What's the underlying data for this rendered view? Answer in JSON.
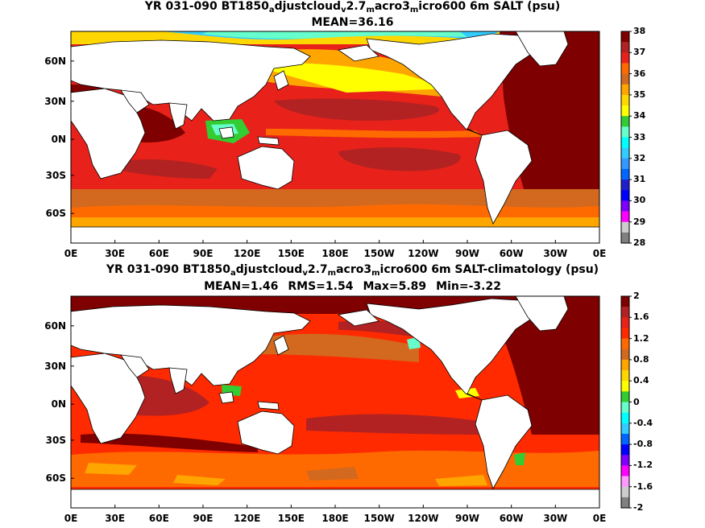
{
  "panels": [
    {
      "title_parts": [
        "YR 031-090 BT1850",
        "a",
        "djustcloud",
        "v",
        "2.7",
        "m",
        "acro3",
        "m",
        "icro600 6m SALT (psu)"
      ],
      "stats": [
        "MEAN=36.16"
      ],
      "colorbar_labels": [
        "38",
        "37",
        "36",
        "35",
        "34",
        "33",
        "32",
        "31",
        "30",
        "29",
        "28"
      ],
      "colorbar_colors": [
        "#7f0000",
        "#b22222",
        "#e8221a",
        "#ff6a00",
        "#d2691e",
        "#ffa500",
        "#ffd700",
        "#ffff00",
        "#33cc33",
        "#66ffcc",
        "#00ffff",
        "#33ccff",
        "#3399ff",
        "#0066ff",
        "#1f1fcc",
        "#0000ff",
        "#7f00ff",
        "#ff00ff",
        "#cccccc",
        "#808080"
      ]
    },
    {
      "title_parts": [
        "YR 031-090 BT1850",
        "a",
        "djustcloud",
        "v",
        "2.7",
        "m",
        "acro3",
        "m",
        "icro600 6m SALT-climatology (psu)"
      ],
      "stats": [
        "MEAN=1.46",
        "RMS=1.54",
        "Max=5.89",
        "Min=-3.22"
      ],
      "colorbar_labels": [
        "2",
        "1.6",
        "1.2",
        "0.8",
        "0.4",
        "0",
        "-0.4",
        "-0.8",
        "-1.2",
        "-1.6",
        "-2"
      ],
      "colorbar_colors": [
        "#7f0000",
        "#b22222",
        "#e8221a",
        "#ff2a00",
        "#ff6a00",
        "#d2691e",
        "#ffa500",
        "#ffd700",
        "#ffff00",
        "#33cc33",
        "#66ffcc",
        "#00ffff",
        "#33ccff",
        "#0066ff",
        "#0000ff",
        "#7f00ff",
        "#ff00ff",
        "#ff99ff",
        "#cccccc",
        "#808080"
      ]
    }
  ],
  "lat_labels": [
    "60N",
    "30N",
    "0N",
    "30S",
    "60S"
  ],
  "lon_labels": [
    "0E",
    "30E",
    "60E",
    "90E",
    "120E",
    "150E",
    "180E",
    "150W",
    "120W",
    "90W",
    "60W",
    "30W",
    "0E"
  ],
  "colors": {
    "land": "#ffffff",
    "coast": "#000000"
  }
}
